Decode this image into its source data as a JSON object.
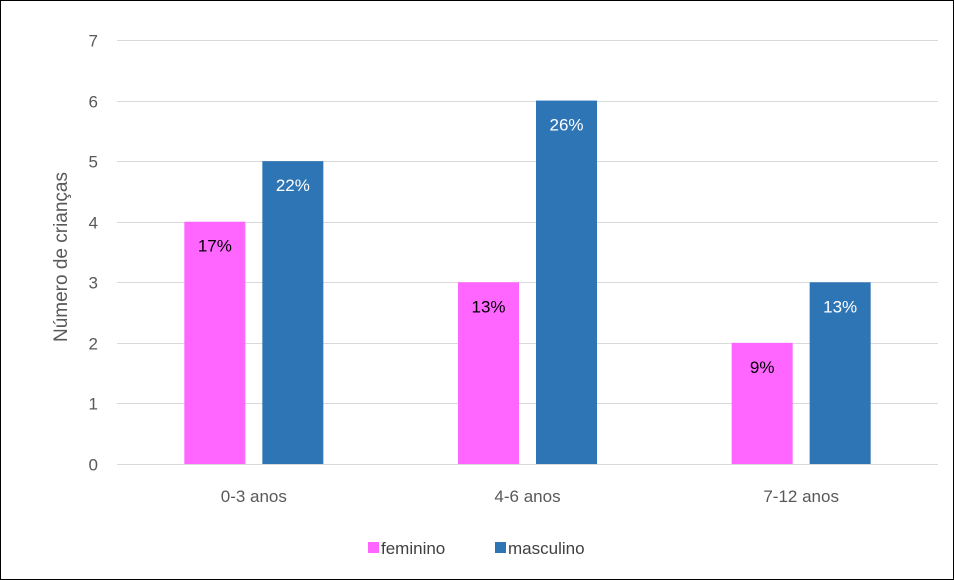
{
  "chart_data": {
    "type": "bar",
    "title": "",
    "xlabel": "",
    "ylabel": "Número de crianças",
    "categories": [
      "0-3 anos",
      "4-6 anos",
      "7-12 anos"
    ],
    "ylim": [
      0,
      7
    ],
    "yticks": [
      "0",
      "1",
      "2",
      "3",
      "4",
      "5",
      "6",
      "7"
    ],
    "grid": true,
    "legend_position": "bottom",
    "series": [
      {
        "name": "feminino",
        "color": "#FF66FF",
        "label_color": "#000000",
        "values": [
          4,
          3,
          2
        ],
        "labels": [
          "17%",
          "13%",
          "9%"
        ]
      },
      {
        "name": "masculino",
        "color": "#2E75B6",
        "label_color": "#FFFFFF",
        "values": [
          5,
          6,
          3
        ],
        "labels": [
          "22%",
          "26%",
          "13%"
        ]
      }
    ]
  }
}
